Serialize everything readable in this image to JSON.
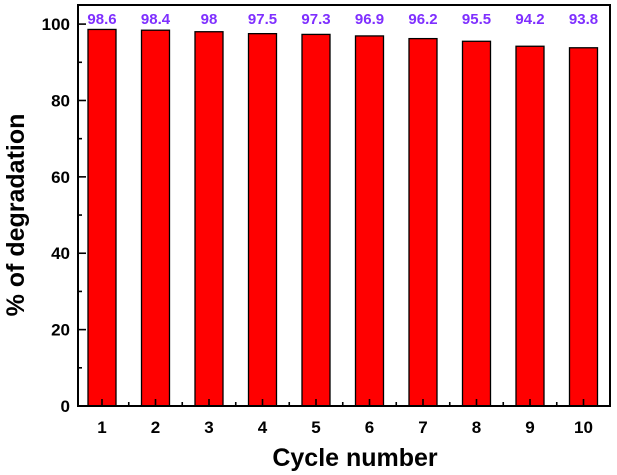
{
  "chart_data": {
    "type": "bar",
    "categories": [
      "1",
      "2",
      "3",
      "4",
      "5",
      "6",
      "7",
      "8",
      "9",
      "10"
    ],
    "values": [
      98.6,
      98.4,
      98,
      97.5,
      97.3,
      96.9,
      96.2,
      95.5,
      94.2,
      93.8
    ],
    "data_labels": [
      "98.6",
      "98.4",
      "98",
      "97.5",
      "97.3",
      "96.9",
      "96.2",
      "95.5",
      "94.2",
      "93.8"
    ],
    "xlabel": "Cycle number",
    "ylabel": "% of degradation",
    "ylim": [
      0,
      105
    ],
    "yticks": [
      0,
      20,
      40,
      60,
      80,
      100
    ],
    "grid": false,
    "legend": "none",
    "colors": {
      "bar": "#ff0000",
      "bar_edge": "#000000",
      "data_label": "#7f2fff"
    }
  }
}
